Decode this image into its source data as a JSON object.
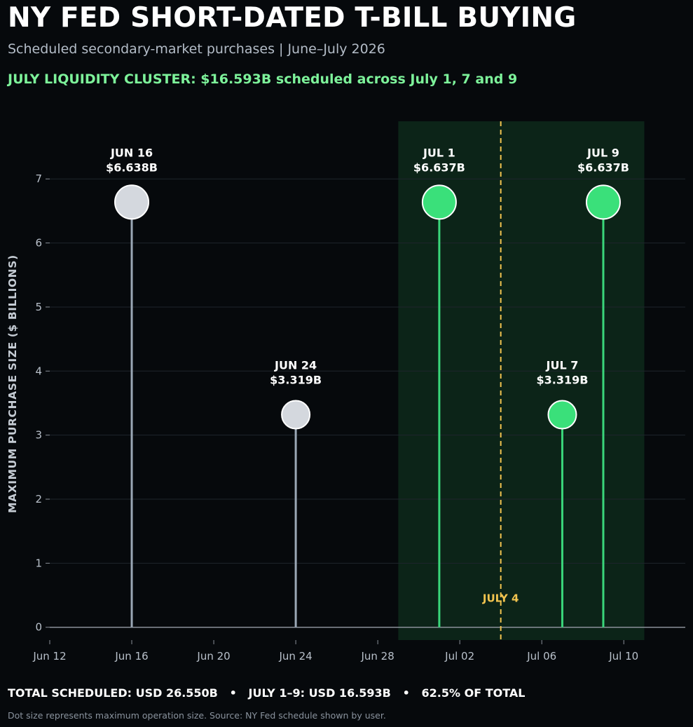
{
  "header": {
    "title": "NY FED SHORT-DATED T-BILL BUYING",
    "subtitle": "Scheduled secondary-market purchases | June–July 2026",
    "highlight": "JULY LIQUIDITY CLUSTER: $16.593B scheduled across July 1, 7 and 9"
  },
  "footer": {
    "summary": "TOTAL SCHEDULED: USD 26.550B   •   JULY 1–9: USD 16.593B   •   62.5% OF TOTAL",
    "note": "Dot size represents maximum operation size. Source: NY Fed schedule shown by user."
  },
  "colors": {
    "background": "#06090c",
    "june_point": "#d4d8de",
    "june_stem": "#9aa7b5",
    "july_point": "#3ae07a",
    "july_stem": "#3ad67a",
    "cluster_band": "#0c2418",
    "holiday_line": "#f2c44f",
    "axis": "#8a9099",
    "tick_text": "#b8c0ca"
  },
  "chart_data": {
    "type": "scatter",
    "subtype": "lollipop",
    "title": "NY FED SHORT-DATED T-BILL BUYING",
    "xlabel": "",
    "ylabel": "MAXIMUM PURCHASE SIZE ($ BILLIONS)",
    "xlim": [
      "2026-06-12",
      "2026-07-13"
    ],
    "ylim": [
      -0.2,
      7.9
    ],
    "grid": true,
    "x_ticks": [
      {
        "date": "2026-06-12",
        "label": "Jun 12"
      },
      {
        "date": "2026-06-16",
        "label": "Jun 16"
      },
      {
        "date": "2026-06-20",
        "label": "Jun 20"
      },
      {
        "date": "2026-06-24",
        "label": "Jun 24"
      },
      {
        "date": "2026-06-28",
        "label": "Jun 28"
      },
      {
        "date": "2026-07-02",
        "label": "Jul 02"
      },
      {
        "date": "2026-07-06",
        "label": "Jul 06"
      },
      {
        "date": "2026-07-10",
        "label": "Jul 10"
      }
    ],
    "y_ticks": [
      0,
      1,
      2,
      3,
      4,
      5,
      6,
      7
    ],
    "points": [
      {
        "date": "2026-06-16",
        "value": 6.638,
        "label_date": "JUN 16",
        "label_value": "$6.638B",
        "group": "june"
      },
      {
        "date": "2026-06-24",
        "value": 3.319,
        "label_date": "JUN 24",
        "label_value": "$3.319B",
        "group": "june"
      },
      {
        "date": "2026-07-01",
        "value": 6.637,
        "label_date": "JUL 1",
        "label_value": "$6.637B",
        "group": "july"
      },
      {
        "date": "2026-07-07",
        "value": 3.319,
        "label_date": "JUL 7",
        "label_value": "$3.319B",
        "group": "july"
      },
      {
        "date": "2026-07-09",
        "value": 6.637,
        "label_date": "JUL 9",
        "label_value": "$6.637B",
        "group": "july"
      }
    ],
    "shaded_region": {
      "start": "2026-06-29",
      "end": "2026-07-11"
    },
    "reference_line": {
      "date": "2026-07-04",
      "label": "JULY 4"
    }
  }
}
